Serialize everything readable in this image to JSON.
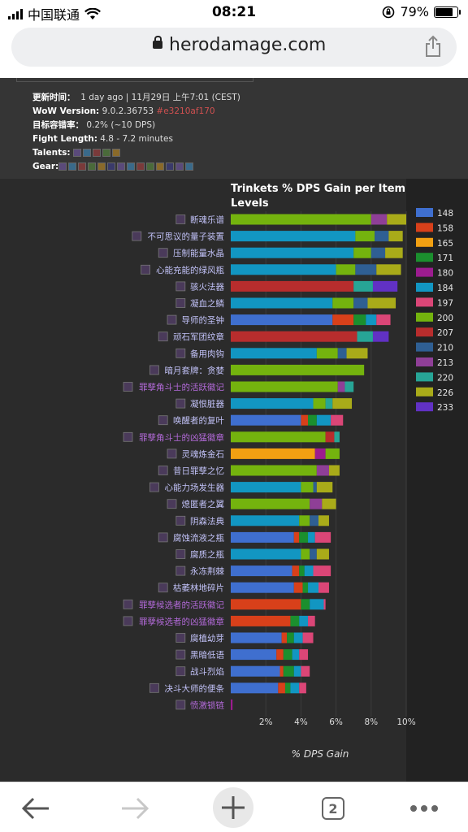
{
  "status": {
    "carrier": "中国联通",
    "time": "08:21",
    "battery": "79%",
    "battery_level": 0.79
  },
  "browser": {
    "url": "herodamage.com",
    "tab_count": "2"
  },
  "meta": {
    "update_label": "更新时间：",
    "update_value": "1 day ago | 11月29日 上午7:01 (CEST)",
    "wow_label": "WoW Version:",
    "wow_value": "9.0.2.36753",
    "wow_hash": "#e3210af170",
    "error_label": "目标容错率：",
    "error_value": "0.2% (~10 DPS)",
    "fight_label": "Fight Length:",
    "fight_value": "4.8 - 7.2 minutes",
    "talents_label": "Talents:",
    "gear_label": "Gear:"
  },
  "chart_data": {
    "type": "bar",
    "stacked": true,
    "orientation": "horizontal",
    "title": "Trinkets % DPS Gain per Item Levels",
    "xlabel": "% DPS Gain",
    "xlim": [
      0,
      10
    ],
    "xticks": [
      "2%",
      "4%",
      "6%",
      "8%",
      "10%"
    ],
    "legend_position": "right",
    "levels": [
      "148",
      "158",
      "165",
      "171",
      "180",
      "184",
      "197",
      "200",
      "207",
      "210",
      "213",
      "220",
      "226",
      "233"
    ],
    "level_colors": [
      "#3f6fcf",
      "#d8401a",
      "#f2a012",
      "#1b8f2e",
      "#9c1c8f",
      "#1296c2",
      "#db4677",
      "#74b30e",
      "#b82d2d",
      "#2f5f93",
      "#8f3f97",
      "#27a596",
      "#a9ab19",
      "#6131c4"
    ],
    "items": [
      {
        "name": "断魂乐谱",
        "color": "#c1c1f7",
        "segments": [
          {
            "level": "200",
            "value": 8.0
          },
          {
            "level": "213",
            "value": 0.9
          },
          {
            "level": "226",
            "value": 1.1
          }
        ]
      },
      {
        "name": "不可思议的量子装置",
        "color": "#c1c1f7",
        "segments": [
          {
            "level": "184",
            "value": 7.1
          },
          {
            "level": "200",
            "value": 1.1
          },
          {
            "level": "210",
            "value": 0.8
          },
          {
            "level": "226",
            "value": 0.8
          }
        ]
      },
      {
        "name": "压制能量水晶",
        "color": "#c1c1f7",
        "segments": [
          {
            "level": "184",
            "value": 7.0
          },
          {
            "level": "200",
            "value": 1.0
          },
          {
            "level": "210",
            "value": 0.8
          },
          {
            "level": "226",
            "value": 1.0
          }
        ]
      },
      {
        "name": "心能充能的绿风瓶",
        "color": "#c1c1f7",
        "segments": [
          {
            "level": "184",
            "value": 6.0
          },
          {
            "level": "200",
            "value": 1.1
          },
          {
            "level": "210",
            "value": 1.2
          },
          {
            "level": "226",
            "value": 1.4
          }
        ]
      },
      {
        "name": "骇火法器",
        "color": "#c1c1f7",
        "segments": [
          {
            "level": "207",
            "value": 7.0
          },
          {
            "level": "220",
            "value": 1.1
          },
          {
            "level": "233",
            "value": 1.4
          }
        ]
      },
      {
        "name": "凝血之鳞",
        "color": "#c1c1f7",
        "segments": [
          {
            "level": "184",
            "value": 5.8
          },
          {
            "level": "200",
            "value": 1.2
          },
          {
            "level": "210",
            "value": 0.8
          },
          {
            "level": "226",
            "value": 1.6
          }
        ]
      },
      {
        "name": "导师的圣钟",
        "color": "#c1c1f7",
        "segments": [
          {
            "level": "148",
            "value": 5.8
          },
          {
            "level": "158",
            "value": 1.2
          },
          {
            "level": "171",
            "value": 0.7
          },
          {
            "level": "184",
            "value": 0.6
          },
          {
            "level": "197",
            "value": 0.8
          }
        ]
      },
      {
        "name": "顽石军团纹章",
        "color": "#c1c1f7",
        "segments": [
          {
            "level": "207",
            "value": 7.2
          },
          {
            "level": "220",
            "value": 0.9
          },
          {
            "level": "233",
            "value": 0.9
          }
        ]
      },
      {
        "name": "备用肉钩",
        "color": "#c1c1f7",
        "segments": [
          {
            "level": "184",
            "value": 4.9
          },
          {
            "level": "200",
            "value": 1.2
          },
          {
            "level": "210",
            "value": 0.5
          },
          {
            "level": "226",
            "value": 1.2
          }
        ]
      },
      {
        "name": "暗月套牌：贪婪",
        "color": "#c1c1f7",
        "segments": [
          {
            "level": "200",
            "value": 7.6
          }
        ]
      },
      {
        "name": "罪孽角斗士的活跃徽记",
        "color": "#b36ad9",
        "segments": [
          {
            "level": "200",
            "value": 6.1
          },
          {
            "level": "213",
            "value": 0.4
          },
          {
            "level": "220",
            "value": 0.5
          }
        ]
      },
      {
        "name": "凝恨脏器",
        "color": "#c1c1f7",
        "segments": [
          {
            "level": "184",
            "value": 4.7
          },
          {
            "level": "200",
            "value": 0.7
          },
          {
            "level": "220",
            "value": 0.4
          },
          {
            "level": "226",
            "value": 1.1
          }
        ]
      },
      {
        "name": "唤醒者的复叶",
        "color": "#c1c1f7",
        "segments": [
          {
            "level": "148",
            "value": 4.0
          },
          {
            "level": "158",
            "value": 0.4
          },
          {
            "level": "171",
            "value": 0.5
          },
          {
            "level": "184",
            "value": 0.8
          },
          {
            "level": "197",
            "value": 0.7
          }
        ]
      },
      {
        "name": "罪孽角斗士的凶猛徽章",
        "color": "#b36ad9",
        "segments": [
          {
            "level": "200",
            "value": 5.4
          },
          {
            "level": "207",
            "value": 0.5
          },
          {
            "level": "220",
            "value": 0.3
          }
        ]
      },
      {
        "name": "灵魂炼金石",
        "color": "#c1c1f7",
        "segments": [
          {
            "level": "165",
            "value": 4.8
          },
          {
            "level": "180",
            "value": 0.6
          },
          {
            "level": "200",
            "value": 0.8
          }
        ]
      },
      {
        "name": "昔日罪孽之忆",
        "color": "#c1c1f7",
        "segments": [
          {
            "level": "200",
            "value": 4.9
          },
          {
            "level": "213",
            "value": 0.7
          },
          {
            "level": "226",
            "value": 0.6
          }
        ]
      },
      {
        "name": "心能力场发生器",
        "color": "#c1c1f7",
        "segments": [
          {
            "level": "184",
            "value": 4.0
          },
          {
            "level": "200",
            "value": 0.7
          },
          {
            "level": "210",
            "value": 0.2
          },
          {
            "level": "226",
            "value": 0.9
          }
        ]
      },
      {
        "name": "熄匿者之翼",
        "color": "#c1c1f7",
        "segments": [
          {
            "level": "200",
            "value": 4.5
          },
          {
            "level": "213",
            "value": 0.7
          },
          {
            "level": "226",
            "value": 0.8
          }
        ]
      },
      {
        "name": "阴森法典",
        "color": "#c1c1f7",
        "segments": [
          {
            "level": "184",
            "value": 3.9
          },
          {
            "level": "200",
            "value": 0.6
          },
          {
            "level": "210",
            "value": 0.5
          },
          {
            "level": "226",
            "value": 0.6
          }
        ]
      },
      {
        "name": "腐蚀流液之瓶",
        "color": "#c1c1f7",
        "segments": [
          {
            "level": "148",
            "value": 3.6
          },
          {
            "level": "158",
            "value": 0.3
          },
          {
            "level": "171",
            "value": 0.5
          },
          {
            "level": "184",
            "value": 0.4
          },
          {
            "level": "197",
            "value": 0.9
          }
        ]
      },
      {
        "name": "腐质之瓶",
        "color": "#c1c1f7",
        "segments": [
          {
            "level": "184",
            "value": 4.0
          },
          {
            "level": "200",
            "value": 0.5
          },
          {
            "level": "210",
            "value": 0.4
          },
          {
            "level": "226",
            "value": 0.7
          }
        ]
      },
      {
        "name": "永冻荆棘",
        "color": "#c1c1f7",
        "segments": [
          {
            "level": "148",
            "value": 3.5
          },
          {
            "level": "158",
            "value": 0.4
          },
          {
            "level": "171",
            "value": 0.3
          },
          {
            "level": "184",
            "value": 0.5
          },
          {
            "level": "197",
            "value": 1.0
          }
        ]
      },
      {
        "name": "枯萎林地碎片",
        "color": "#c1c1f7",
        "segments": [
          {
            "level": "148",
            "value": 3.6
          },
          {
            "level": "158",
            "value": 0.5
          },
          {
            "level": "171",
            "value": 0.3
          },
          {
            "level": "184",
            "value": 0.6
          },
          {
            "level": "197",
            "value": 0.6
          }
        ]
      },
      {
        "name": "罪孽候选者的活跃徽记",
        "color": "#b36ad9",
        "segments": [
          {
            "level": "158",
            "value": 4.0
          },
          {
            "level": "171",
            "value": 0.5
          },
          {
            "level": "184",
            "value": 0.8
          },
          {
            "level": "197",
            "value": 0.1
          }
        ]
      },
      {
        "name": "罪孽候选者的凶猛徽章",
        "color": "#b36ad9",
        "segments": [
          {
            "level": "158",
            "value": 3.4
          },
          {
            "level": "171",
            "value": 0.5
          },
          {
            "level": "184",
            "value": 0.5
          },
          {
            "level": "197",
            "value": 0.4
          }
        ]
      },
      {
        "name": "腐植幼芽",
        "color": "#c1c1f7",
        "segments": [
          {
            "level": "148",
            "value": 2.9
          },
          {
            "level": "158",
            "value": 0.3
          },
          {
            "level": "171",
            "value": 0.4
          },
          {
            "level": "184",
            "value": 0.5
          },
          {
            "level": "197",
            "value": 0.6
          }
        ]
      },
      {
        "name": "黑暗低语",
        "color": "#c1c1f7",
        "segments": [
          {
            "level": "148",
            "value": 2.6
          },
          {
            "level": "158",
            "value": 0.4
          },
          {
            "level": "171",
            "value": 0.5
          },
          {
            "level": "184",
            "value": 0.4
          },
          {
            "level": "197",
            "value": 0.5
          }
        ]
      },
      {
        "name": "战斗烈焰",
        "color": "#c1c1f7",
        "segments": [
          {
            "level": "148",
            "value": 2.8
          },
          {
            "level": "158",
            "value": 0.2
          },
          {
            "level": "171",
            "value": 0.6
          },
          {
            "level": "184",
            "value": 0.4
          },
          {
            "level": "197",
            "value": 0.5
          }
        ]
      },
      {
        "name": "决斗大师的便条",
        "color": "#c1c1f7",
        "segments": [
          {
            "level": "148",
            "value": 2.7
          },
          {
            "level": "158",
            "value": 0.4
          },
          {
            "level": "171",
            "value": 0.3
          },
          {
            "level": "184",
            "value": 0.5
          },
          {
            "level": "197",
            "value": 0.4
          }
        ]
      },
      {
        "name": "愤激锁链",
        "color": "#b36ad9",
        "segments": [
          {
            "level": "180",
            "value": 0.1
          }
        ]
      }
    ]
  }
}
